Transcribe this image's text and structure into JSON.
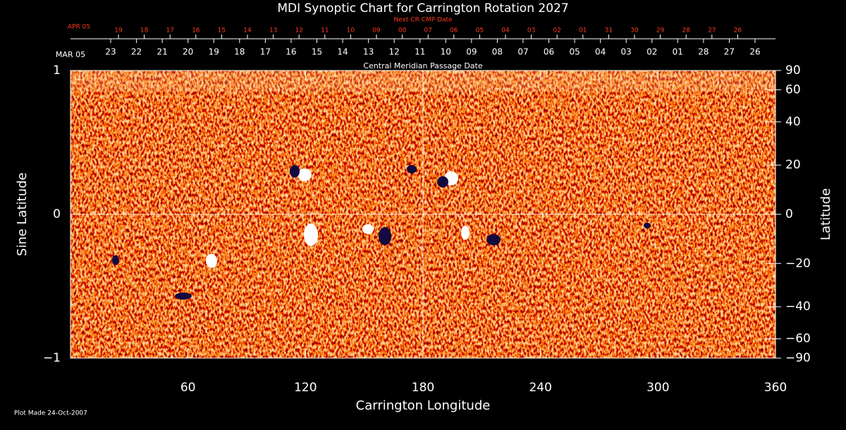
{
  "chart_data": {
    "type": "image",
    "title": "MDI Synoptic Chart for Carrington Rotation 2027",
    "x_label": "Carrington Longitude",
    "y_label": "Sine Latitude",
    "y2_label": "Latitude",
    "footer": "Plot Made 24-Oct-2007",
    "xlim": [
      0,
      360
    ],
    "xticks": [
      60,
      120,
      180,
      240,
      300,
      360
    ],
    "ylim": [
      -1,
      1
    ],
    "yticks": [
      {
        "value": -1,
        "label": "−1"
      },
      0,
      1
    ],
    "y2_scale": "sine",
    "y2ticks": [
      90,
      60,
      40,
      20,
      0,
      {
        "value": -20,
        "label": "−20"
      },
      {
        "value": -40,
        "label": "−40"
      },
      {
        "value": -60,
        "label": "−60"
      },
      {
        "value": -90,
        "label": "−90"
      }
    ],
    "crosshair": {
      "x": 180,
      "y": 0
    },
    "cmp_dates": {
      "title": "Central Meridian Passage Date",
      "month": "MAR 05",
      "labels": [
        "23",
        "22",
        "21",
        "20",
        "19",
        "18",
        "17",
        "16",
        "15",
        "14",
        "13",
        "12",
        "11",
        "10",
        "09",
        "08",
        "07",
        "06",
        "05",
        "04",
        "03",
        "02",
        "01",
        "28",
        "27",
        "26"
      ]
    },
    "next_cr_dates": {
      "title": "Next CR CMP Date",
      "month": "APR 05",
      "labels": [
        "19",
        "18",
        "17",
        "16",
        "15",
        "14",
        "13",
        "12",
        "11",
        "10",
        "09",
        "08",
        "07",
        "06",
        "05",
        "04",
        "03",
        "02",
        "01",
        "31",
        "30",
        "29",
        "28",
        "27",
        "26"
      ]
    }
  }
}
